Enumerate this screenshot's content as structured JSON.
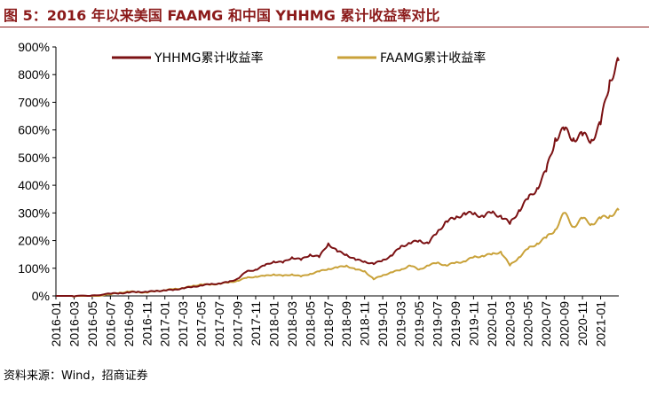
{
  "figure": {
    "title": "图 5：2016 年以来美国 FAAMG 和中国 YHHMG 累计收益率对比",
    "source": "资料来源：Wind，招商证券"
  },
  "chart_data": {
    "type": "line",
    "title": "",
    "xlabel": "",
    "ylabel": "",
    "ylim": [
      0,
      900
    ],
    "yticks": [
      "0%",
      "100%",
      "200%",
      "300%",
      "400%",
      "500%",
      "600%",
      "700%",
      "800%",
      "900%"
    ],
    "xticks": [
      "2016-01",
      "2016-03",
      "2016-05",
      "2016-07",
      "2016-09",
      "2016-11",
      "2017-01",
      "2017-03",
      "2017-05",
      "2017-07",
      "2017-09",
      "2017-11",
      "2018-01",
      "2018-03",
      "2018-05",
      "2018-07",
      "2018-09",
      "2018-11",
      "2019-01",
      "2019-03",
      "2019-05",
      "2019-07",
      "2019-09",
      "2019-11",
      "2020-01",
      "2020-03",
      "2020-05",
      "2020-07",
      "2020-09",
      "2020-11",
      "2021-01"
    ],
    "x_end": "2021-03",
    "legend_position": "top",
    "grid": false,
    "series": [
      {
        "name": "YHHMG累计收益率",
        "color": "#7b1113",
        "x": [
          "2016-01",
          "2016-03",
          "2016-05",
          "2016-07",
          "2016-08",
          "2016-09",
          "2016-10",
          "2016-11",
          "2016-12",
          "2017-01",
          "2017-02",
          "2017-03",
          "2017-04",
          "2017-05",
          "2017-06",
          "2017-07",
          "2017-08",
          "2017-09",
          "2017-10",
          "2017-11",
          "2017-12",
          "2018-01",
          "2018-02",
          "2018-03",
          "2018-04",
          "2018-05",
          "2018-06",
          "2018-07",
          "2018-08",
          "2018-09",
          "2018-10",
          "2018-11",
          "2018-12",
          "2019-01",
          "2019-02",
          "2019-03",
          "2019-04",
          "2019-05",
          "2019-06",
          "2019-07",
          "2019-08",
          "2019-09",
          "2019-10",
          "2019-11",
          "2019-12",
          "2020-01",
          "2020-02",
          "2020-03",
          "2020-04",
          "2020-05",
          "2020-06",
          "2020-07",
          "2020-08",
          "2020-09",
          "2020-10",
          "2020-11",
          "2020-12",
          "2021-01",
          "2021-02",
          "2021-03"
        ],
        "values": [
          0,
          -2,
          2,
          8,
          10,
          12,
          15,
          14,
          18,
          20,
          22,
          28,
          32,
          38,
          42,
          45,
          50,
          62,
          88,
          95,
          110,
          125,
          120,
          140,
          130,
          150,
          140,
          190,
          160,
          150,
          130,
          125,
          115,
          130,
          145,
          180,
          190,
          200,
          190,
          230,
          270,
          280,
          300,
          295,
          290,
          300,
          290,
          260,
          310,
          350,
          390,
          450,
          570,
          600,
          570,
          580,
          565,
          620,
          780,
          850
        ]
      },
      {
        "name": "FAAMG累计收益率",
        "color": "#c9a23a",
        "x": [
          "2016-01",
          "2016-03",
          "2016-05",
          "2016-07",
          "2016-08",
          "2016-09",
          "2016-10",
          "2016-11",
          "2016-12",
          "2017-01",
          "2017-02",
          "2017-03",
          "2017-04",
          "2017-05",
          "2017-06",
          "2017-07",
          "2017-08",
          "2017-09",
          "2017-10",
          "2017-11",
          "2017-12",
          "2018-01",
          "2018-02",
          "2018-03",
          "2018-04",
          "2018-05",
          "2018-06",
          "2018-07",
          "2018-08",
          "2018-09",
          "2018-10",
          "2018-11",
          "2018-12",
          "2019-01",
          "2019-02",
          "2019-03",
          "2019-04",
          "2019-05",
          "2019-06",
          "2019-07",
          "2019-08",
          "2019-09",
          "2019-10",
          "2019-11",
          "2019-12",
          "2020-01",
          "2020-02",
          "2020-03",
          "2020-04",
          "2020-05",
          "2020-06",
          "2020-07",
          "2020-08",
          "2020-09",
          "2020-10",
          "2020-11",
          "2020-12",
          "2021-01",
          "2021-02",
          "2021-03"
        ],
        "values": [
          0,
          -3,
          0,
          5,
          12,
          15,
          14,
          12,
          18,
          20,
          25,
          28,
          35,
          42,
          40,
          45,
          48,
          55,
          65,
          70,
          72,
          78,
          72,
          78,
          70,
          80,
          88,
          98,
          102,
          110,
          95,
          90,
          60,
          75,
          85,
          95,
          110,
          95,
          110,
          120,
          110,
          120,
          125,
          140,
          145,
          150,
          160,
          110,
          140,
          170,
          190,
          210,
          240,
          300,
          250,
          280,
          260,
          280,
          290,
          310
        ]
      }
    ]
  }
}
